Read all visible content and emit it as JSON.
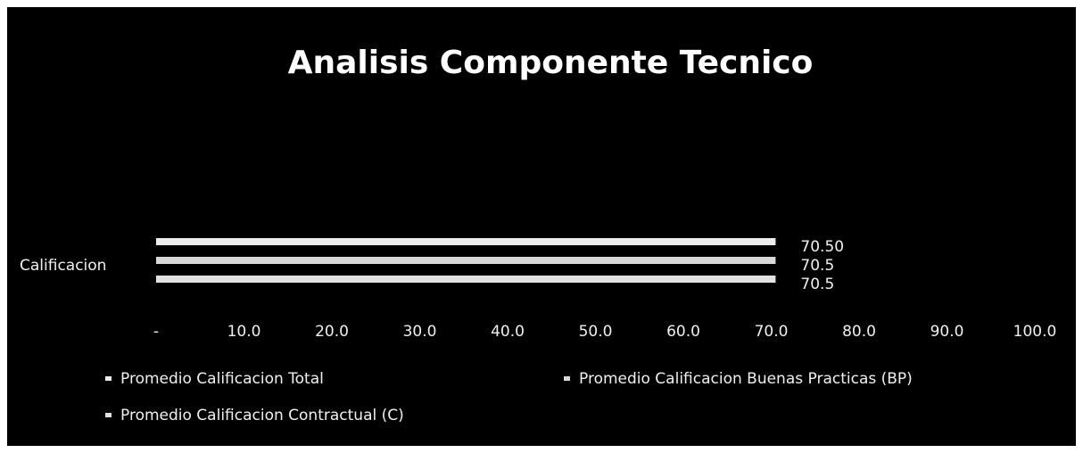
{
  "chart_data": {
    "type": "barh",
    "title": "Analisis Componente Tecnico",
    "categories": [
      "Calificacion"
    ],
    "series": [
      {
        "name": "Promedio Calificacion Total",
        "color": "#ececec",
        "values": [
          70.5
        ],
        "value_labels": [
          "70.50"
        ]
      },
      {
        "name": "Promedio Calificacion Buenas Practicas (BP)",
        "color": "#d8d8d8",
        "values": [
          70.5
        ],
        "value_labels": [
          "70.5"
        ]
      },
      {
        "name": "Promedio Calificacion Contractual (C)",
        "color": "#e2e2e2",
        "values": [
          70.5
        ],
        "value_labels": [
          "70.5"
        ]
      }
    ],
    "xlim": [
      0,
      100
    ],
    "xticks": [
      {
        "value": 0,
        "label": "-"
      },
      {
        "value": 10,
        "label": "10.0"
      },
      {
        "value": 20,
        "label": "20.0"
      },
      {
        "value": 30,
        "label": "30.0"
      },
      {
        "value": 40,
        "label": "40.0"
      },
      {
        "value": 50,
        "label": "50.0"
      },
      {
        "value": 60,
        "label": "60.0"
      },
      {
        "value": 70,
        "label": "70.0"
      },
      {
        "value": 80,
        "label": "80.0"
      },
      {
        "value": 90,
        "label": "90.0"
      },
      {
        "value": 100,
        "label": "100.0"
      }
    ],
    "grid": false,
    "legend": "bottom"
  }
}
